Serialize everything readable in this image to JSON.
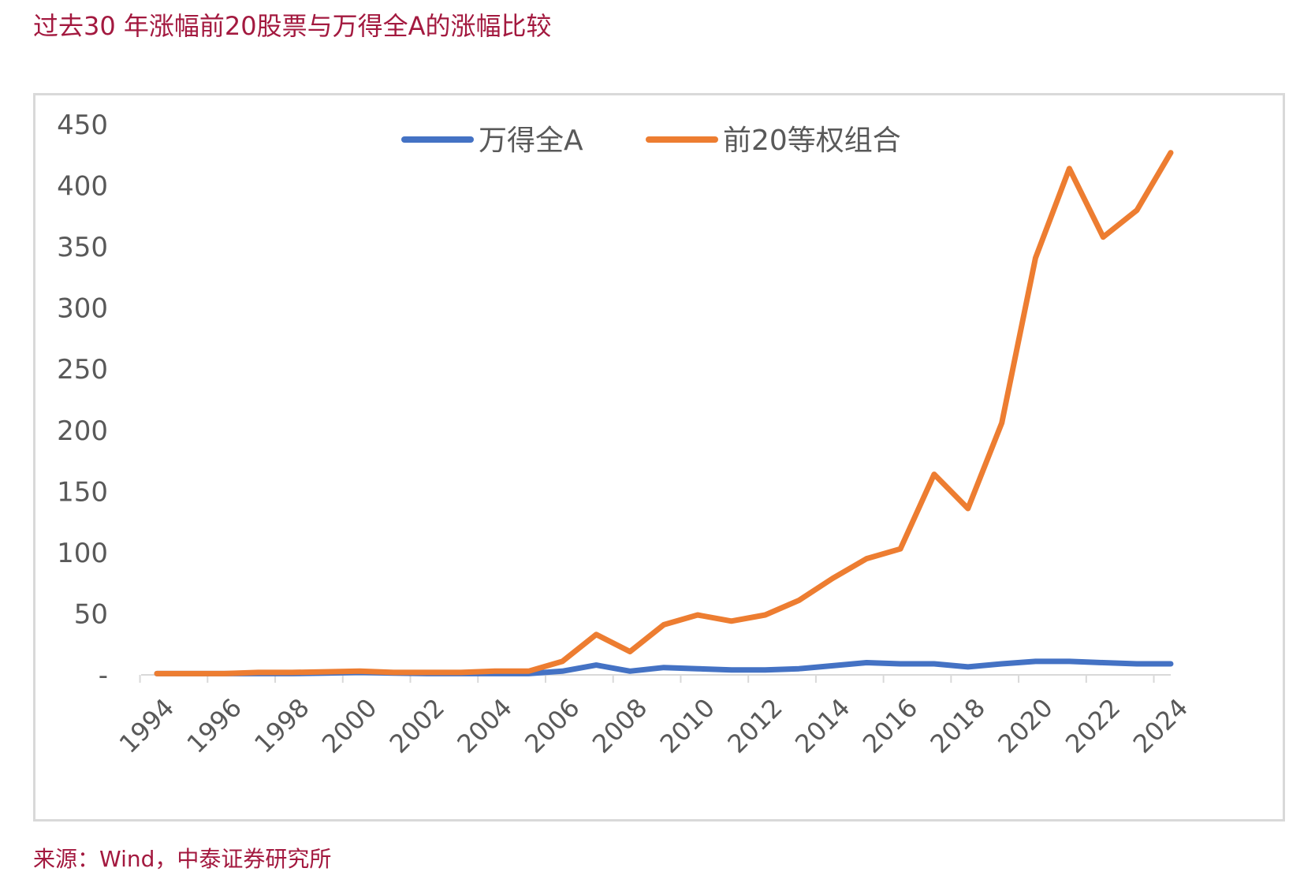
{
  "title": "过去30 年涨幅前20股票与万得全A的涨幅比较",
  "source": "来源：Wind，中泰证券研究所",
  "chart_data": {
    "type": "line",
    "title": "过去30 年涨幅前20股票与万得全A的涨幅比较",
    "xlabel": "",
    "ylabel": "",
    "ylim": [
      0,
      450
    ],
    "yticks": [
      0,
      50,
      100,
      150,
      200,
      250,
      300,
      350,
      400,
      450
    ],
    "ytick_labels": [
      "-",
      "50",
      "100",
      "150",
      "200",
      "250",
      "300",
      "350",
      "400",
      "450"
    ],
    "x": [
      1994,
      1995,
      1996,
      1997,
      1998,
      1999,
      2000,
      2001,
      2002,
      2003,
      2004,
      2005,
      2006,
      2007,
      2008,
      2009,
      2010,
      2011,
      2012,
      2013,
      2014,
      2015,
      2016,
      2017,
      2018,
      2019,
      2020,
      2021,
      2022,
      2023,
      2024
    ],
    "xtick_labels": [
      "1994",
      "1996",
      "1998",
      "2000",
      "2002",
      "2004",
      "2006",
      "2008",
      "2010",
      "2012",
      "2014",
      "2016",
      "2018",
      "2020",
      "2022",
      "2024"
    ],
    "grid": false,
    "legend_position": "top",
    "series": [
      {
        "name": "万得全A",
        "color": "#4472c4",
        "values": [
          1,
          1,
          1,
          1,
          1,
          1.5,
          2,
          1.5,
          1,
          1,
          1,
          1,
          3,
          8,
          3,
          6,
          5,
          4,
          4,
          5,
          7.5,
          10,
          9,
          9,
          6.5,
          9,
          11,
          11,
          10,
          9,
          9
        ]
      },
      {
        "name": "前20等权组合",
        "color": "#ed7d31",
        "values": [
          1,
          1,
          1,
          2,
          2,
          2.5,
          3,
          2,
          2,
          2,
          3,
          3,
          11,
          33,
          19,
          41,
          49,
          44,
          49,
          61,
          79,
          95,
          103,
          164,
          136,
          206,
          341,
          414,
          358,
          380,
          427
        ]
      }
    ]
  }
}
